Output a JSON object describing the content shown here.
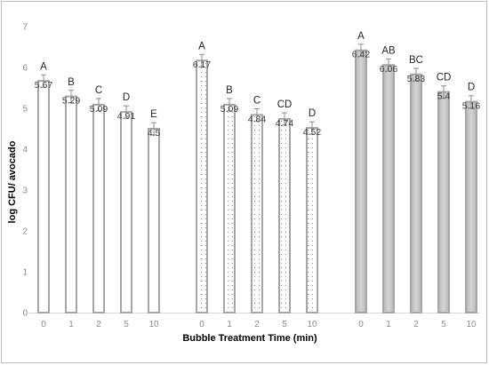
{
  "chart_data": {
    "type": "bar",
    "title": "",
    "xlabel": "Bubble Treatment Time (min)",
    "ylabel": "log CFU/ avocado",
    "ylim": [
      0,
      7
    ],
    "yticks": [
      "0",
      "1",
      "2",
      "3",
      "4",
      "5",
      "6",
      "7"
    ],
    "categories": [
      "0",
      "1",
      "2",
      "5",
      "10"
    ],
    "grid": false,
    "legend": "none",
    "series": [
      {
        "style": "white",
        "values": [
          5.67,
          5.29,
          5.09,
          4.91,
          4.5
        ],
        "errors": [
          0.15,
          0.15,
          0.15,
          0.15,
          0.15
        ],
        "value_labels": [
          "5.67",
          "5.29",
          "5.09",
          "4.91",
          "4.5"
        ],
        "letters": [
          "A",
          "B",
          "C",
          "D",
          "E"
        ]
      },
      {
        "style": "dotted",
        "values": [
          6.17,
          5.09,
          4.84,
          4.74,
          4.52
        ],
        "errors": [
          0.15,
          0.15,
          0.15,
          0.15,
          0.15
        ],
        "value_labels": [
          "6.17",
          "5.09",
          "4.84",
          "4.74",
          "4.52"
        ],
        "letters": [
          "A",
          "B",
          "C",
          "CD",
          "D"
        ]
      },
      {
        "style": "gray",
        "values": [
          6.42,
          6.06,
          5.83,
          5.4,
          5.16
        ],
        "errors": [
          0.15,
          0.15,
          0.15,
          0.15,
          0.15
        ],
        "value_labels": [
          "6.42",
          "6.06",
          "5.83",
          "5.4",
          "5.16"
        ],
        "letters": [
          "A",
          "AB",
          "BC",
          "CD",
          "D"
        ]
      }
    ]
  },
  "colors": {
    "bar_outline": "#a6a6a6",
    "gray_fill": "#c8c8c8",
    "dot": "#8c8c8c",
    "axis": "#d9d9d9",
    "error_bar": "#8c8c8c"
  }
}
